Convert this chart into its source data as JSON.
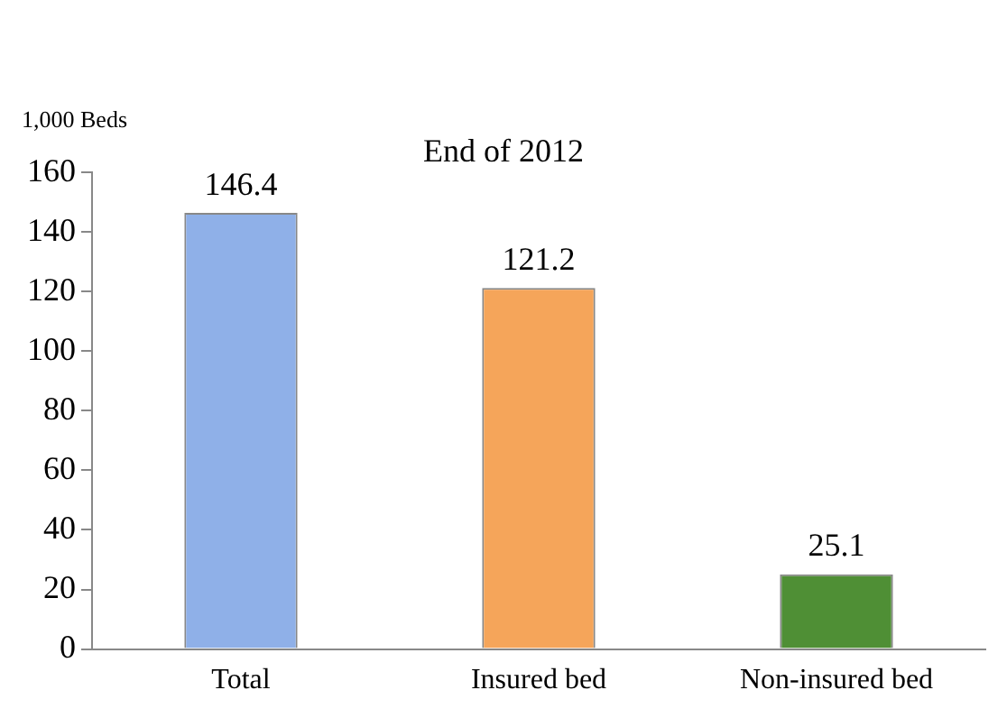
{
  "chart_data": {
    "type": "bar",
    "title": "End of 2012",
    "ylabel": "1,000 Beds",
    "categories": [
      "Total",
      "Insured bed",
      "Non-insured bed"
    ],
    "values": [
      146.4,
      121.2,
      25.1
    ],
    "colors": [
      "#8fb0e8",
      "#f5a55a",
      "#4f8f35"
    ],
    "ylim": [
      0,
      160
    ],
    "yticks": [
      0,
      20,
      40,
      60,
      80,
      100,
      120,
      140,
      160
    ],
    "data_labels": true,
    "grid": false,
    "legend": false
  }
}
